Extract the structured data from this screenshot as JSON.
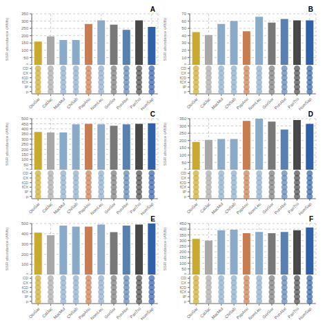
{
  "chart_data": [
    {
      "type": "bar",
      "title": "A",
      "ylabel": "SSR abundance (#/Mb)",
      "categories": [
        "OtoGar",
        "CalJac",
        "MacMul",
        "ChiSab",
        "PapAnu",
        "NomLeu",
        "GorGor",
        "PonAbe",
        "PanTro",
        "HomSap"
      ],
      "values": [
        160,
        195,
        170,
        170,
        280,
        305,
        275,
        240,
        305,
        260
      ],
      "colors": [
        "#C9A92E",
        "#A8A8A8",
        "#8AAAC8",
        "#8AAAC8",
        "#C87C50",
        "#8AAAC8",
        "#787878",
        "#5880B0",
        "#484848",
        "#3060A8"
      ],
      "ylim": [
        0,
        350
      ],
      "yticks": [
        0,
        50,
        100,
        150,
        200,
        250,
        300,
        350
      ],
      "grid": true,
      "y_categories": [
        "CD",
        "CX",
        "fCD",
        "fCX",
        "IP",
        "p"
      ],
      "floor_colors": [
        "#C9A92E",
        "#A8A8A8",
        "#8AAAC8",
        "#8AAAC8",
        "#C87C50",
        "#8AAAC8",
        "#787878",
        "#5880B0",
        "#484848",
        "#3060A8"
      ]
    },
    {
      "type": "bar",
      "title": "B",
      "ylabel": "SSR abundance (#/Mb)",
      "categories": [
        "OtoGar",
        "CalJac",
        "MacMul",
        "ChiSab",
        "PapAnu",
        "NomLeu",
        "GorGor",
        "PonAbe",
        "PanTro",
        "HomSap"
      ],
      "values": [
        45,
        41,
        56,
        60,
        46,
        66,
        58,
        63,
        61,
        61
      ],
      "colors": [
        "#C9A92E",
        "#A8A8A8",
        "#8AAAC8",
        "#8AAAC8",
        "#C87C50",
        "#8AAAC8",
        "#787878",
        "#5880B0",
        "#484848",
        "#3060A8"
      ],
      "ylim": [
        0,
        70
      ],
      "yticks": [
        0,
        10,
        20,
        30,
        40,
        50,
        60,
        70
      ],
      "grid": true,
      "y_categories": [
        "CD",
        "CX",
        "fCD",
        "fCX",
        "IP",
        "p"
      ],
      "floor_colors": [
        "#C9A92E",
        "#A8A8A8",
        "#8AAAC8",
        "#8AAAC8",
        "#C87C50",
        "#8AAAC8",
        "#787878",
        "#5880B0",
        "#484848",
        "#3060A8"
      ]
    },
    {
      "type": "bar",
      "title": "C",
      "ylabel": "SSR abundance (#/Mb)",
      "categories": [
        "OtoGar",
        "CalJac",
        "MacMul",
        "ChiSab",
        "PapAnu",
        "NomLeu",
        "GorGor",
        "PonAbe",
        "PanTro",
        "HomSap"
      ],
      "values": [
        370,
        365,
        365,
        445,
        450,
        445,
        430,
        445,
        450,
        455
      ],
      "colors": [
        "#C9A92E",
        "#A8A8A8",
        "#8AAAC8",
        "#8AAAC8",
        "#C87C50",
        "#8AAAC8",
        "#787878",
        "#5880B0",
        "#484848",
        "#3060A8"
      ],
      "ylim": [
        0,
        500
      ],
      "yticks": [
        0,
        50,
        100,
        150,
        200,
        250,
        300,
        350,
        400,
        450,
        500
      ],
      "grid": true,
      "y_categories": [
        "CD",
        "CX",
        "fCD",
        "fCX",
        "IP",
        "p"
      ],
      "floor_colors": [
        "#C9A92E",
        "#A8A8A8",
        "#8AAAC8",
        "#8AAAC8",
        "#C87C50",
        "#8AAAC8",
        "#787878",
        "#5880B0",
        "#484848",
        "#3060A8"
      ]
    },
    {
      "type": "bar",
      "title": "D",
      "ylabel": "SSR abundance (#/Mb)",
      "categories": [
        "OtoGar",
        "CalJac",
        "MacMul",
        "ChiSab",
        "PapAnu",
        "NomLeu",
        "GorGor",
        "PonAbe",
        "PanTro",
        "HomSap"
      ],
      "values": [
        190,
        205,
        210,
        210,
        335,
        350,
        330,
        275,
        340,
        315
      ],
      "colors": [
        "#C9A92E",
        "#A8A8A8",
        "#8AAAC8",
        "#8AAAC8",
        "#C87C50",
        "#8AAAC8",
        "#787878",
        "#5880B0",
        "#484848",
        "#3060A8"
      ],
      "ylim": [
        0,
        350
      ],
      "yticks": [
        0,
        50,
        100,
        150,
        200,
        250,
        300,
        350
      ],
      "grid": true,
      "y_categories": [
        "CD",
        "CX",
        "fCD",
        "fCX",
        "IP",
        "p"
      ],
      "floor_colors": [
        "#C9A92E",
        "#A8A8A8",
        "#8AAAC8",
        "#8AAAC8",
        "#C87C50",
        "#8AAAC8",
        "#787878",
        "#5880B0",
        "#484848",
        "#3060A8"
      ]
    },
    {
      "type": "bar",
      "title": "E",
      "ylabel": "SSR abundance (#/Mb)",
      "categories": [
        "OtoGar",
        "CalJac",
        "MacMul",
        "ChiSab",
        "PapAnu",
        "NomLeu",
        "GorGor",
        "PonAbe",
        "PanTro",
        "HomSap"
      ],
      "values": [
        410,
        385,
        480,
        470,
        470,
        490,
        415,
        480,
        490,
        500
      ],
      "colors": [
        "#C9A92E",
        "#A8A8A8",
        "#8AAAC8",
        "#8AAAC8",
        "#C87C50",
        "#8AAAC8",
        "#787878",
        "#5880B0",
        "#484848",
        "#3060A8"
      ],
      "ylim": [
        0,
        500
      ],
      "yticks": [
        0,
        100,
        200,
        300,
        400,
        500
      ],
      "grid": true,
      "y_categories": [
        "CD",
        "CX",
        "fCD",
        "fCX",
        "IP",
        "p"
      ],
      "floor_colors": [
        "#C9A92E",
        "#A8A8A8",
        "#8AAAC8",
        "#8AAAC8",
        "#C87C50",
        "#8AAAC8",
        "#787878",
        "#5880B0",
        "#484848",
        "#3060A8"
      ]
    },
    {
      "type": "bar",
      "title": "F",
      "ylabel": "SSR abundance (#/Mb)",
      "categories": [
        "OtoGar",
        "CalJac",
        "MacMul",
        "ChiSab",
        "PapAnu",
        "NomLeu",
        "GorGor",
        "PonAbe",
        "PanTro",
        "HomSap"
      ],
      "values": [
        315,
        300,
        390,
        395,
        365,
        375,
        365,
        375,
        390,
        415
      ],
      "colors": [
        "#C9A92E",
        "#A8A8A8",
        "#8AAAC8",
        "#8AAAC8",
        "#C87C50",
        "#8AAAC8",
        "#787878",
        "#5880B0",
        "#484848",
        "#3060A8"
      ],
      "ylim": [
        0,
        450
      ],
      "yticks": [
        0,
        50,
        100,
        150,
        200,
        250,
        300,
        350,
        400,
        450
      ],
      "grid": true,
      "y_categories": [
        "CD",
        "CX",
        "fCD",
        "fCX",
        "IP",
        "p"
      ],
      "floor_colors": [
        "#C9A92E",
        "#A8A8A8",
        "#8AAAC8",
        "#8AAAC8",
        "#C87C50",
        "#8AAAC8",
        "#787878",
        "#5880B0",
        "#484848",
        "#3060A8"
      ]
    }
  ]
}
